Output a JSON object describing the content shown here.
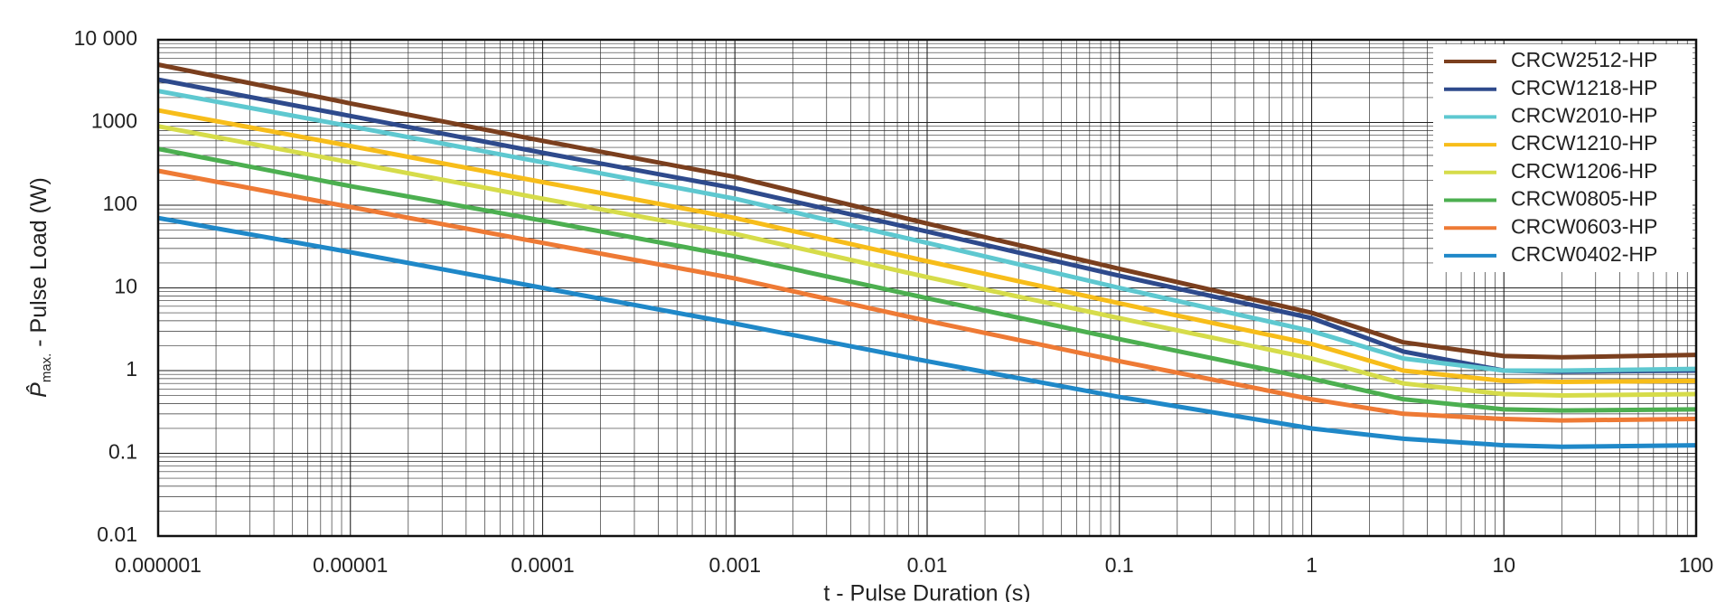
{
  "chart_data": {
    "type": "line",
    "y_label": {
      "symbol": "P̂",
      "sub": "max.",
      "rest": " - Pulse Load (W)"
    },
    "x_label": "t - Pulse Duration (s)",
    "log_x": true,
    "log_y": true,
    "grid": true,
    "legend": "upper right",
    "xlim": [
      1e-06,
      100
    ],
    "ylim": [
      0.01,
      10000
    ],
    "xticks": [
      1e-06,
      1e-05,
      0.0001,
      0.001,
      0.01,
      0.1,
      1,
      10,
      100
    ],
    "yticks": [
      0.01,
      0.1,
      1,
      10,
      100,
      1000,
      {
        "value": 10000,
        "label": "10 000"
      }
    ],
    "x": [
      1e-06,
      1e-05,
      0.0001,
      0.001,
      0.01,
      0.1,
      1,
      3,
      10,
      20,
      100
    ],
    "series": [
      {
        "name": "CRCW2512-HP",
        "color": "#7b3f1e",
        "values": [
          5000,
          1700,
          600,
          220,
          60,
          17,
          5,
          2.2,
          1.5,
          1.45,
          1.55
        ]
      },
      {
        "name": "CRCW1218-HP",
        "color": "#2e4a8c",
        "values": [
          3300,
          1200,
          430,
          160,
          48,
          14,
          4.3,
          1.7,
          1.0,
          0.97,
          1.0
        ]
      },
      {
        "name": "CRCW2010-HP",
        "color": "#5ec8d0",
        "values": [
          2400,
          900,
          330,
          120,
          35,
          10,
          3,
          1.4,
          1.0,
          1.0,
          1.05
        ]
      },
      {
        "name": "CRCW1210-HP",
        "color": "#f7bd1a",
        "values": [
          1400,
          520,
          190,
          70,
          21,
          6.5,
          2.1,
          1.0,
          0.75,
          0.73,
          0.75
        ]
      },
      {
        "name": "CRCW1206-HP",
        "color": "#d6dc4a",
        "values": [
          900,
          330,
          120,
          45,
          13.5,
          4.3,
          1.4,
          0.7,
          0.52,
          0.5,
          0.52
        ]
      },
      {
        "name": "CRCW0805-HP",
        "color": "#4caf50",
        "values": [
          480,
          170,
          65,
          24,
          7.5,
          2.4,
          0.8,
          0.45,
          0.34,
          0.33,
          0.34
        ]
      },
      {
        "name": "CRCW0603-HP",
        "color": "#ee7a35",
        "values": [
          260,
          95,
          35,
          13,
          4,
          1.3,
          0.45,
          0.3,
          0.26,
          0.25,
          0.26
        ]
      },
      {
        "name": "CRCW0402-HP",
        "color": "#1f88c8",
        "values": [
          70,
          27,
          10,
          3.7,
          1.3,
          0.48,
          0.2,
          0.15,
          0.125,
          0.12,
          0.125
        ]
      }
    ]
  }
}
